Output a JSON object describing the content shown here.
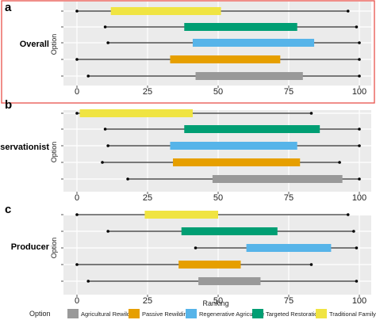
{
  "figure": {
    "option_axis_label": "Option",
    "x_axis_label": "Ranking",
    "legend_title": "Option"
  },
  "colors": {
    "Agricultural Rewilding": "#999999",
    "Passive Rewilding": "#E69F00",
    "Regenerative Agriculture": "#56B4E9",
    "Targeted Restoration": "#009E73",
    "Traditional Family Farm": "#F0E442",
    "panel_bg": "#ebebeb",
    "highlight_border": "#e8524a"
  },
  "legend": [
    "Agricultural Rewilding",
    "Passive Rewilding",
    "Regenerative Agriculture",
    "Targeted Restoration",
    "Traditional Family Farm"
  ],
  "chart_data": [
    {
      "type": "range",
      "panel_letter": "a",
      "title": "Overall",
      "xlim": [
        0,
        100
      ],
      "x_ticks": [
        0,
        25,
        50,
        75,
        100
      ],
      "highlighted": true,
      "rows": [
        {
          "option": "Traditional Family Farm",
          "min": 0,
          "max": 96,
          "q1": 12,
          "q3": 51
        },
        {
          "option": "Targeted Restoration",
          "min": 10,
          "max": 99,
          "q1": 38,
          "q3": 78
        },
        {
          "option": "Regenerative Agriculture",
          "min": 11,
          "max": 100,
          "q1": 41,
          "q3": 84
        },
        {
          "option": "Passive Rewilding",
          "min": 0,
          "max": 100,
          "q1": 33,
          "q3": 72
        },
        {
          "option": "Agricultural Rewilding",
          "min": 4,
          "max": 100,
          "q1": 42,
          "q3": 80
        }
      ]
    },
    {
      "type": "range",
      "panel_letter": "b",
      "title": "Conservationist",
      "xlim": [
        0,
        100
      ],
      "x_ticks": [
        0,
        25,
        50,
        75,
        100
      ],
      "highlighted": false,
      "rows": [
        {
          "option": "Traditional Family Farm",
          "min": 0,
          "max": 83,
          "q1": 1,
          "q3": 41
        },
        {
          "option": "Targeted Restoration",
          "min": 10,
          "max": 100,
          "q1": 38,
          "q3": 86
        },
        {
          "option": "Regenerative Agriculture",
          "min": 11,
          "max": 100,
          "q1": 33,
          "q3": 78
        },
        {
          "option": "Passive Rewilding",
          "min": 9,
          "max": 93,
          "q1": 34,
          "q3": 79
        },
        {
          "option": "Agricultural Rewilding",
          "min": 18,
          "max": 100,
          "q1": 48,
          "q3": 94
        }
      ]
    },
    {
      "type": "range",
      "panel_letter": "c",
      "title": "Producer",
      "xlim": [
        0,
        100
      ],
      "x_ticks": [
        0,
        25,
        50,
        75,
        100
      ],
      "highlighted": false,
      "rows": [
        {
          "option": "Traditional Family Farm",
          "min": 0,
          "max": 96,
          "q1": 24,
          "q3": 50
        },
        {
          "option": "Targeted Restoration",
          "min": 11,
          "max": 98,
          "q1": 37,
          "q3": 71
        },
        {
          "option": "Regenerative Agriculture",
          "min": 42,
          "max": 99,
          "q1": 60,
          "q3": 90
        },
        {
          "option": "Passive Rewilding",
          "min": 0,
          "max": 83,
          "q1": 36,
          "q3": 58
        },
        {
          "option": "Agricultural Rewilding",
          "min": 4,
          "max": 99,
          "q1": 43,
          "q3": 65
        }
      ]
    }
  ]
}
